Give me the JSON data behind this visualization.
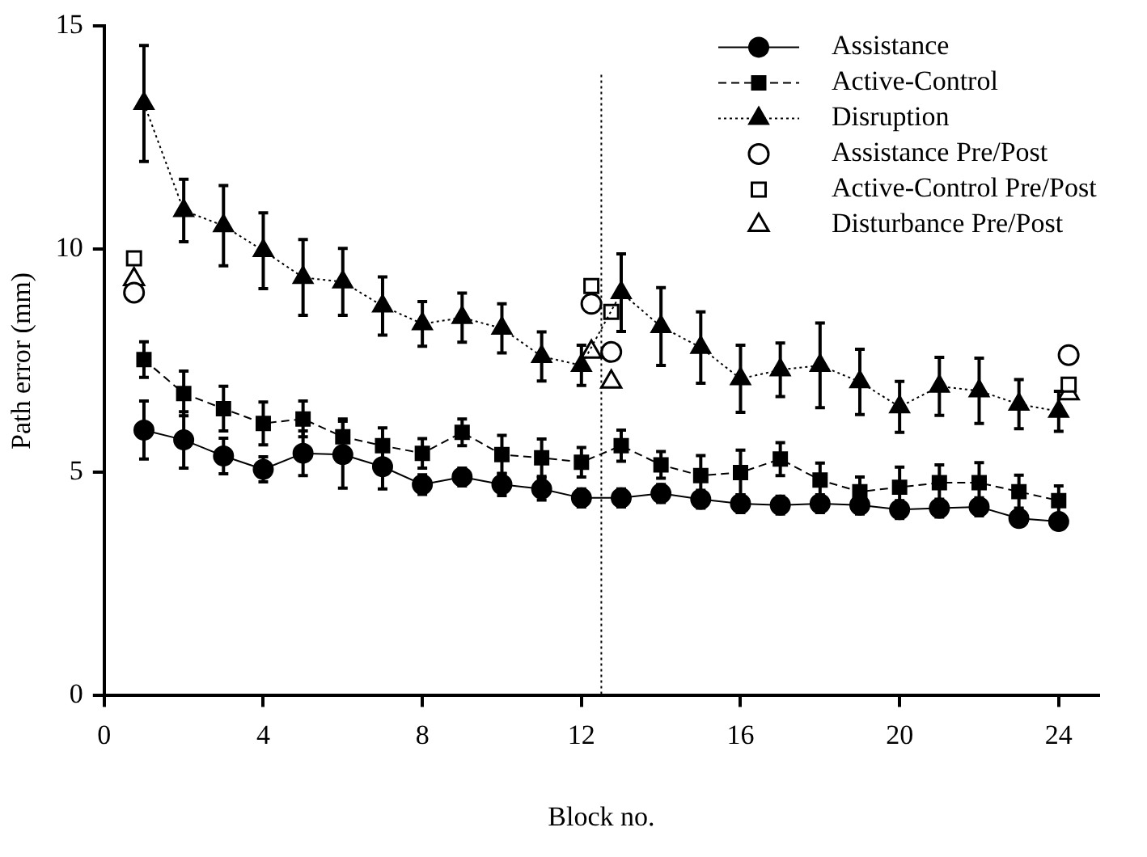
{
  "chart_data": {
    "type": "line",
    "xlabel": "Block no.",
    "ylabel": "Path error (mm)",
    "xlim": [
      0,
      25
    ],
    "xticks": [
      0,
      4,
      8,
      12,
      16,
      20,
      24
    ],
    "ylim": [
      0,
      15
    ],
    "yticks": [
      0,
      5,
      10,
      15
    ],
    "grid": false,
    "legend": "top right",
    "x": [
      1,
      2,
      3,
      4,
      5,
      6,
      7,
      8,
      9,
      10,
      11,
      12,
      13,
      14,
      15,
      16,
      17,
      18,
      19,
      20,
      21,
      22,
      23,
      24
    ],
    "series": [
      {
        "name": "Assistance",
        "type": "line",
        "color": "#000000",
        "marker": "circle",
        "line_style": "solid",
        "values": [
          5.95,
          5.73,
          5.37,
          5.07,
          5.43,
          5.4,
          5.13,
          4.73,
          4.9,
          4.73,
          4.63,
          4.43,
          4.43,
          4.53,
          4.4,
          4.3,
          4.27,
          4.3,
          4.27,
          4.17,
          4.2,
          4.23,
          3.97,
          3.9
        ],
        "errors": [
          0.65,
          0.63,
          0.4,
          0.28,
          0.5,
          0.75,
          0.5,
          0.22,
          0.2,
          0.25,
          0.25,
          0.2,
          0.2,
          0.2,
          0.2,
          0.2,
          0.2,
          0.2,
          0.2,
          0.2,
          0.2,
          0.2,
          null,
          null
        ]
      },
      {
        "name": "Active-Control",
        "type": "line",
        "color": "#000000",
        "marker": "square",
        "line_style": "dashed",
        "values": [
          7.53,
          6.77,
          6.43,
          6.1,
          6.2,
          5.8,
          5.6,
          5.43,
          5.9,
          5.4,
          5.33,
          5.23,
          5.6,
          5.17,
          4.93,
          5.0,
          5.3,
          4.83,
          4.57,
          4.67,
          4.77,
          4.77,
          4.57,
          4.37
        ],
        "errors": [
          0.4,
          0.5,
          0.5,
          0.48,
          0.4,
          0.4,
          0.4,
          0.33,
          0.3,
          0.43,
          0.42,
          0.33,
          0.35,
          0.3,
          0.45,
          0.5,
          0.37,
          0.38,
          0.33,
          0.45,
          0.4,
          0.45,
          0.37,
          0.33
        ]
      },
      {
        "name": "Disruption",
        "type": "line",
        "color": "#000000",
        "marker": "triangle",
        "line_style": "dotted",
        "values": [
          13.27,
          10.87,
          10.53,
          9.97,
          9.37,
          9.27,
          8.73,
          8.33,
          8.47,
          8.23,
          7.6,
          7.4,
          9.03,
          8.27,
          7.8,
          7.1,
          7.3,
          7.4,
          7.03,
          6.47,
          6.93,
          6.83,
          6.53,
          6.37
        ],
        "errors": [
          1.3,
          0.7,
          0.9,
          0.85,
          0.85,
          0.75,
          0.65,
          0.5,
          0.55,
          0.55,
          0.55,
          0.45,
          0.87,
          0.87,
          0.8,
          0.75,
          0.6,
          0.95,
          0.73,
          0.57,
          0.65,
          0.73,
          0.55,
          0.45
        ]
      },
      {
        "name": "Assistance Pre/Post",
        "type": "scatter",
        "color": "#000000",
        "marker": "circle",
        "x": [
          0.75,
          12.25,
          12.75,
          24.25
        ],
        "values": [
          9.03,
          8.78,
          7.7,
          7.63
        ]
      },
      {
        "name": "Active-Control Pre/Post",
        "type": "scatter",
        "color": "#000000",
        "marker": "square",
        "x": [
          0.75,
          12.25,
          12.75,
          24.25
        ],
        "values": [
          9.8,
          9.18,
          8.6,
          6.97
        ]
      },
      {
        "name": "Disturbance Pre/Post",
        "type": "scatter",
        "color": "#000000",
        "marker": "triangle",
        "x": [
          0.75,
          12.25,
          12.75,
          24.25
        ],
        "values": [
          9.33,
          7.7,
          7.03,
          6.77
        ]
      }
    ],
    "ref_lines": [
      {
        "axis": "x",
        "value": 12.5,
        "line_style": "dotted",
        "color": "#000000"
      }
    ]
  }
}
